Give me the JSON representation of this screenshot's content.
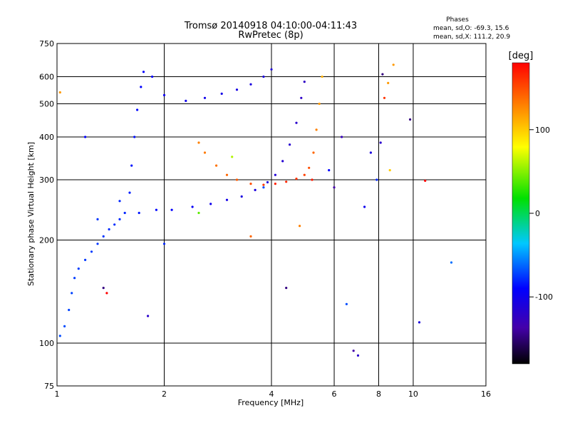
{
  "chart_data": {
    "type": "scatter",
    "title": "Tromsø 20140918 04:10:00-04:11:43",
    "subtitle": "RwPretec (8p)",
    "xlabel": "Frequency [MHz]",
    "ylabel": "Stationary phase Virtual Height [km]",
    "x_scale": "log",
    "y_scale": "log",
    "xlim": [
      1,
      16
    ],
    "ylim": [
      75,
      750
    ],
    "x_ticks": [
      "1",
      "2",
      "4",
      "6",
      "8",
      "10",
      "16"
    ],
    "y_ticks": [
      "75",
      "100",
      "200",
      "300",
      "400",
      "500",
      "600",
      "750"
    ],
    "grid": true,
    "phase_info": {
      "title": "Phases",
      "line_o": "mean, sd,O: -69.3, 15.6",
      "line_x": "mean, sd,X: 111.2, 20.9"
    },
    "colorbar": {
      "label": "[deg]",
      "range": [
        -180,
        180
      ],
      "ticks": [
        "100",
        "0",
        "-100"
      ],
      "tick_values": [
        100,
        0,
        -100
      ]
    },
    "traces": [
      {
        "name": "",
        "points": [
          [
            1.02,
            105,
            -70
          ],
          [
            1.05,
            112,
            -70
          ],
          [
            1.08,
            125,
            -72
          ],
          [
            1.1,
            140,
            -72
          ],
          [
            1.12,
            155,
            -74
          ],
          [
            1.15,
            165,
            -74
          ],
          [
            1.2,
            175,
            -75
          ],
          [
            1.25,
            185,
            -75
          ],
          [
            1.3,
            195,
            -76
          ],
          [
            1.35,
            205,
            -76
          ],
          [
            1.4,
            215,
            -78
          ],
          [
            1.45,
            222,
            -78
          ],
          [
            1.5,
            230,
            -79
          ],
          [
            1.55,
            240,
            -80
          ],
          [
            1.6,
            275,
            -82
          ],
          [
            1.62,
            330,
            -84
          ],
          [
            1.65,
            400,
            -86
          ],
          [
            1.68,
            480,
            -88
          ],
          [
            1.72,
            560,
            -90
          ],
          [
            1.75,
            620,
            -92
          ],
          [
            1.85,
            600,
            -94
          ],
          [
            2.0,
            530,
            -98
          ],
          [
            2.3,
            510,
            -100
          ],
          [
            2.6,
            520,
            -102
          ],
          [
            2.9,
            535,
            -104
          ],
          [
            3.2,
            550,
            -106
          ],
          [
            3.5,
            570,
            -108
          ],
          [
            3.8,
            600,
            -110
          ],
          [
            4.0,
            630,
            -112
          ]
        ]
      },
      {
        "name": "",
        "points": [
          [
            1.3,
            230,
            -76
          ],
          [
            1.5,
            260,
            -80
          ],
          [
            1.7,
            240,
            -84
          ],
          [
            1.9,
            245,
            -88
          ],
          [
            2.1,
            245,
            -92
          ],
          [
            2.4,
            250,
            -96
          ],
          [
            2.7,
            255,
            -100
          ],
          [
            3.0,
            262,
            -104
          ],
          [
            3.3,
            268,
            -108
          ],
          [
            3.6,
            280,
            -110
          ],
          [
            3.9,
            295,
            -112
          ],
          [
            4.1,
            310,
            -114
          ],
          [
            4.3,
            340,
            -116
          ],
          [
            4.5,
            380,
            -118
          ],
          [
            4.7,
            440,
            -120
          ],
          [
            4.85,
            520,
            -122
          ],
          [
            4.95,
            580,
            -124
          ]
        ]
      },
      {
        "name": "",
        "points": [
          [
            2.5,
            385,
            130
          ],
          [
            2.6,
            360,
            132
          ],
          [
            2.8,
            330,
            136
          ],
          [
            3.0,
            310,
            140
          ],
          [
            3.2,
            300,
            145
          ],
          [
            3.5,
            292,
            150
          ],
          [
            3.8,
            290,
            160
          ],
          [
            4.1,
            292,
            168
          ],
          [
            4.4,
            296,
            166
          ],
          [
            4.7,
            302,
            160
          ],
          [
            4.95,
            310,
            155
          ],
          [
            5.1,
            325,
            150
          ],
          [
            5.25,
            360,
            140
          ],
          [
            5.35,
            420,
            130
          ],
          [
            5.45,
            500,
            120
          ],
          [
            5.55,
            600,
            110
          ]
        ]
      },
      {
        "name": "",
        "points": [
          [
            1.02,
            540,
            120
          ],
          [
            1.2,
            400,
            -90
          ],
          [
            1.35,
            145,
            -150
          ],
          [
            1.38,
            140,
            200
          ],
          [
            1.8,
            120,
            -120
          ],
          [
            2.0,
            195,
            -80
          ],
          [
            2.5,
            240,
            40
          ],
          [
            3.1,
            350,
            60
          ],
          [
            3.5,
            205,
            140
          ],
          [
            3.8,
            285,
            -70
          ],
          [
            4.4,
            145,
            -150
          ],
          [
            4.8,
            220,
            130
          ],
          [
            5.2,
            300,
            170
          ],
          [
            5.8,
            320,
            -90
          ],
          [
            6.0,
            285,
            -140
          ],
          [
            6.3,
            400,
            -130
          ],
          [
            6.5,
            130,
            -70
          ],
          [
            6.8,
            95,
            -140
          ],
          [
            7.0,
            92,
            -120
          ],
          [
            7.3,
            250,
            -100
          ],
          [
            7.6,
            360,
            -110
          ],
          [
            7.9,
            300,
            -80
          ],
          [
            8.1,
            385,
            -120
          ],
          [
            8.2,
            610,
            -150
          ],
          [
            8.3,
            520,
            160
          ],
          [
            8.5,
            575,
            120
          ],
          [
            8.6,
            320,
            100
          ],
          [
            8.8,
            650,
            120
          ],
          [
            9.8,
            450,
            -150
          ],
          [
            10.4,
            115,
            -110
          ],
          [
            10.8,
            298,
            180
          ],
          [
            12.8,
            172,
            -60
          ]
        ]
      }
    ]
  }
}
